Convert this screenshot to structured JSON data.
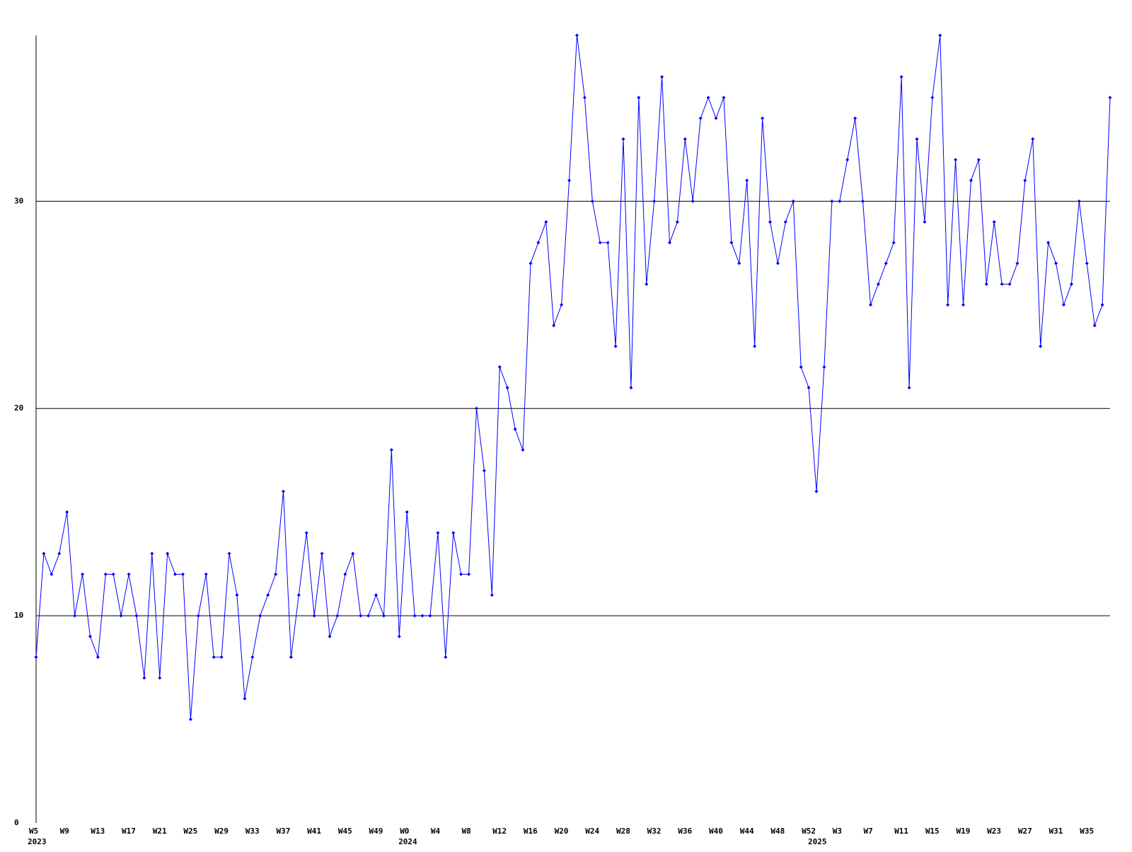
{
  "chart_data": {
    "type": "line",
    "color": "#0000ff",
    "ylim": [
      0,
      38
    ],
    "yticks": [
      0,
      10,
      20,
      30
    ],
    "grid": true,
    "markers": true,
    "categories": [
      "W5",
      null,
      null,
      null,
      "W9",
      null,
      null,
      null,
      "W13",
      null,
      null,
      null,
      "W17",
      null,
      null,
      null,
      "W21",
      null,
      null,
      null,
      "W25",
      null,
      null,
      null,
      "W29",
      null,
      null,
      null,
      "W33",
      null,
      null,
      null,
      "W37",
      null,
      null,
      null,
      "W41",
      null,
      null,
      null,
      "W45",
      null,
      null,
      null,
      "W49",
      null,
      null,
      null,
      "W0",
      null,
      null,
      null,
      "W4",
      null,
      null,
      null,
      "W8",
      null,
      null,
      null,
      "W12",
      null,
      null,
      null,
      "W16",
      null,
      null,
      null,
      "W20",
      null,
      null,
      null,
      "W24",
      null,
      null,
      null,
      "W28",
      null,
      null,
      null,
      "W32",
      null,
      null,
      null,
      "W36",
      null,
      null,
      null,
      "W40",
      null,
      null,
      null,
      "W44",
      null,
      null,
      null,
      "W48",
      null,
      null,
      null,
      "W52",
      null,
      null,
      null,
      "W3",
      null,
      null,
      null,
      "W7",
      null,
      null,
      null,
      "W11",
      null,
      null,
      null,
      "W15",
      null,
      null,
      null,
      "W19",
      null,
      null,
      null,
      "W23",
      null,
      null,
      null,
      "W27",
      null,
      null,
      null,
      "W31",
      null,
      null,
      null,
      "W35",
      null,
      null,
      null
    ],
    "groups": [
      {
        "label": "2023",
        "start": 0
      },
      {
        "label": "2024",
        "start": 48
      },
      {
        "label": "2025",
        "start": 101
      }
    ],
    "values": [
      8,
      13,
      12,
      13,
      15,
      10,
      12,
      9,
      8,
      12,
      12,
      10,
      12,
      10,
      7,
      13,
      7,
      13,
      12,
      12,
      5,
      10,
      12,
      8,
      8,
      13,
      11,
      6,
      8,
      10,
      11,
      12,
      16,
      8,
      11,
      14,
      10,
      13,
      9,
      10,
      12,
      13,
      10,
      10,
      11,
      10,
      18,
      9,
      15,
      10,
      10,
      10,
      14,
      8,
      14,
      12,
      12,
      20,
      17,
      11,
      22,
      21,
      19,
      18,
      27,
      28,
      29,
      24,
      25,
      31,
      38,
      35,
      30,
      28,
      28,
      23,
      33,
      21,
      35,
      26,
      30,
      36,
      28,
      29,
      33,
      30,
      34,
      35,
      34,
      35,
      28,
      27,
      31,
      23,
      34,
      29,
      27,
      29,
      30,
      22,
      21,
      16,
      22,
      30,
      30,
      32,
      34,
      30,
      25,
      26,
      27,
      28,
      36,
      21,
      33,
      29,
      35,
      38,
      25,
      32,
      25,
      31,
      32,
      26,
      29,
      26,
      26,
      27,
      31,
      33,
      23,
      28,
      27,
      25,
      26,
      30,
      27,
      24,
      25,
      35
    ]
  }
}
